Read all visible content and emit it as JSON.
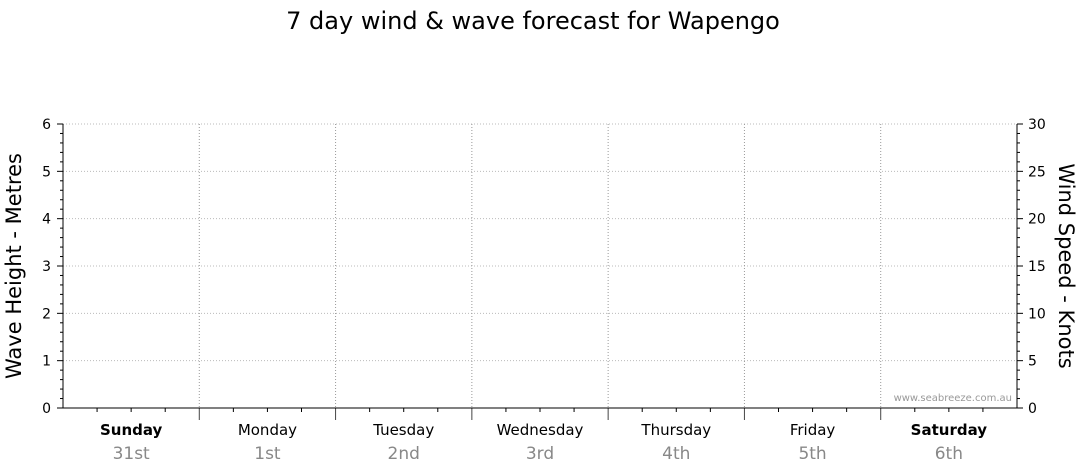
{
  "chart_data": {
    "type": "line",
    "title": "7 day wind & wave forecast for Wapengo",
    "y_left": {
      "label": "Wave Height - Metres",
      "range": [
        0,
        6
      ],
      "ticks": [
        "0",
        "1",
        "2",
        "3",
        "4",
        "5",
        "6"
      ]
    },
    "y_right": {
      "label": "Wind Speed - Knots",
      "range": [
        0,
        30
      ],
      "ticks": [
        "0",
        "5",
        "10",
        "15",
        "20",
        "25",
        "30"
      ]
    },
    "days": [
      {
        "name": "Sunday",
        "date": "31st",
        "bold": true
      },
      {
        "name": "Monday",
        "date": "1st",
        "bold": false
      },
      {
        "name": "Tuesday",
        "date": "2nd",
        "bold": false
      },
      {
        "name": "Wednesday",
        "date": "3rd",
        "bold": false
      },
      {
        "name": "Thursday",
        "date": "4th",
        "bold": false
      },
      {
        "name": "Friday",
        "date": "5th",
        "bold": false
      },
      {
        "name": "Saturday",
        "date": "6th",
        "bold": true
      }
    ],
    "series": [],
    "grid": true,
    "watermark": "www.seabreeze.com.au"
  }
}
